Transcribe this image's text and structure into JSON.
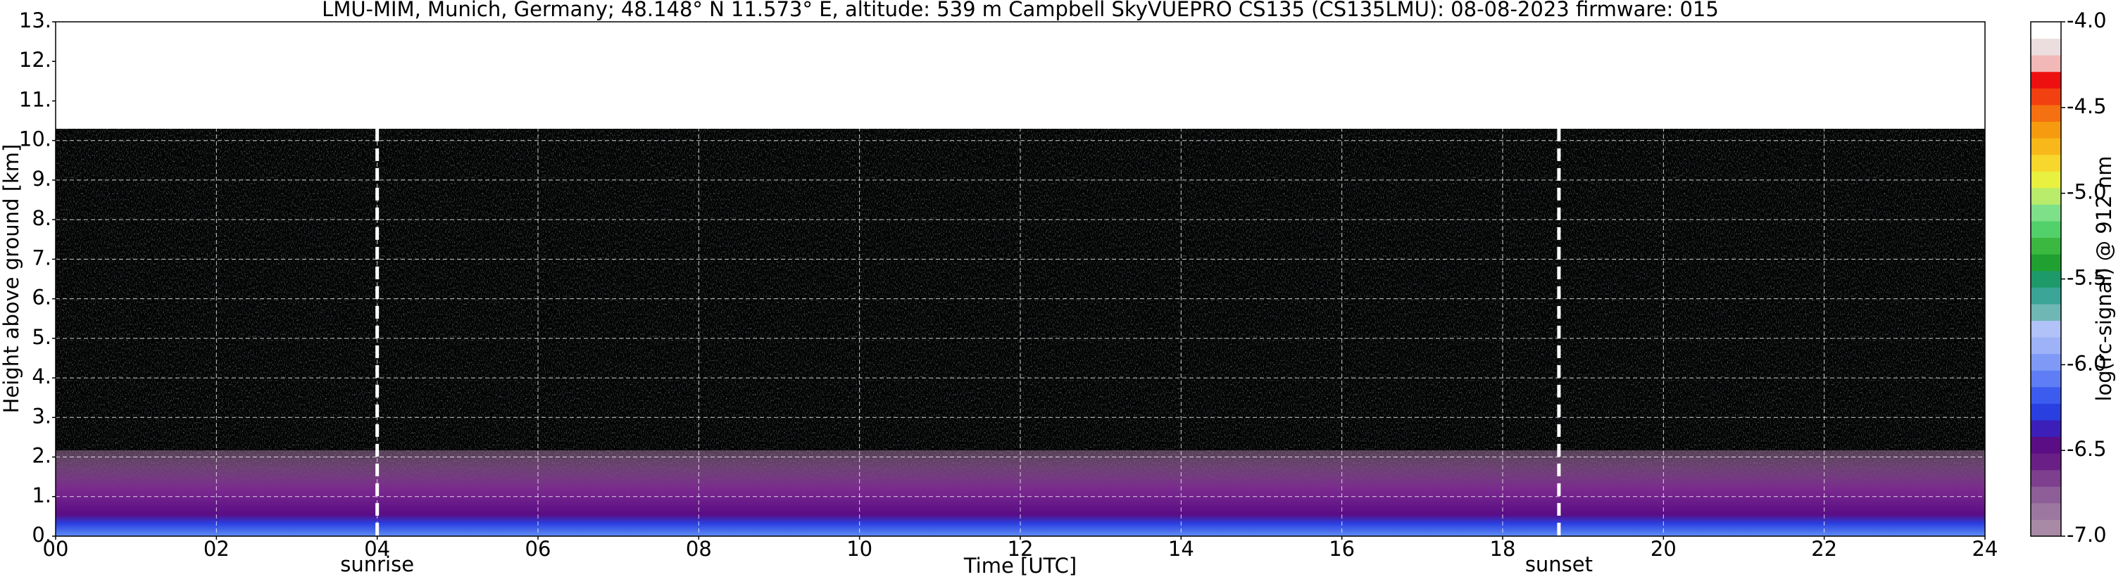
{
  "chart_data": {
    "type": "heatmap",
    "title": "LMU-MIM, Munich, Germany; 48.148° N 11.573° E, altitude: 539 m    Campbell SkyVUEPRO CS135 (CS135LMU): 08-08-2023    firmware: 015",
    "x_label": "Time [UTC]",
    "y_label": "Height above ground [km]",
    "xlim": [
      0,
      24
    ],
    "xticks": [
      {
        "value": 0,
        "label": "00"
      },
      {
        "value": 2,
        "label": "02"
      },
      {
        "value": 4,
        "label": "04"
      },
      {
        "value": 6,
        "label": "06"
      },
      {
        "value": 8,
        "label": "08"
      },
      {
        "value": 10,
        "label": "10"
      },
      {
        "value": 12,
        "label": "12"
      },
      {
        "value": 14,
        "label": "14"
      },
      {
        "value": 16,
        "label": "16"
      },
      {
        "value": 18,
        "label": "18"
      },
      {
        "value": 20,
        "label": "20"
      },
      {
        "value": 22,
        "label": "22"
      },
      {
        "value": 24,
        "label": "24"
      }
    ],
    "ylim": [
      0,
      13
    ],
    "yticks": [
      {
        "value": 0,
        "label": "0."
      },
      {
        "value": 1,
        "label": "1."
      },
      {
        "value": 2,
        "label": "2."
      },
      {
        "value": 3,
        "label": "3."
      },
      {
        "value": 4,
        "label": "4."
      },
      {
        "value": 5,
        "label": "5."
      },
      {
        "value": 6,
        "label": "6."
      },
      {
        "value": 7,
        "label": "7."
      },
      {
        "value": 8,
        "label": "8."
      },
      {
        "value": 9,
        "label": "9."
      },
      {
        "value": 10,
        "label": "10."
      },
      {
        "value": 11,
        "label": "11."
      },
      {
        "value": 12,
        "label": "12."
      },
      {
        "value": 13,
        "label": "13."
      }
    ],
    "grid": true,
    "annotations": [
      {
        "text": "sunrise",
        "x": 4
      },
      {
        "text": "sunset",
        "x": 18.7
      }
    ],
    "colorbar": {
      "label": "log(rc-signal) @ 912 nm",
      "lim": [
        -7,
        -4
      ],
      "ticks": [
        {
          "value": -7,
          "label": "-7.0"
        },
        {
          "value": -6.5,
          "label": "-6.5"
        },
        {
          "value": -6,
          "label": "-6.0"
        },
        {
          "value": -5.5,
          "label": "-5.5"
        },
        {
          "value": -5,
          "label": "-5.0"
        },
        {
          "value": -4.5,
          "label": "-4.5"
        },
        {
          "value": -4,
          "label": "-4.0"
        }
      ],
      "colors": [
        "#a98aa6",
        "#9c78a0",
        "#8e5e98",
        "#7d3f8e",
        "#6a1f86",
        "#5a0d85",
        "#3b1fb8",
        "#2a3fe0",
        "#3c5cf0",
        "#5f7ef5",
        "#7f9af6",
        "#9db2f7",
        "#b0c2f7",
        "#6fb7b4",
        "#3aa596",
        "#1e9a6a",
        "#20a030",
        "#3bb840",
        "#52d06a",
        "#7fe08a",
        "#b8ec6a",
        "#e8f040",
        "#f7d72c",
        "#f8b81a",
        "#f69a10",
        "#f57010",
        "#f24010",
        "#ee1010",
        "#f2b8b8",
        "#ecdede",
        "#ffffff"
      ]
    }
  }
}
